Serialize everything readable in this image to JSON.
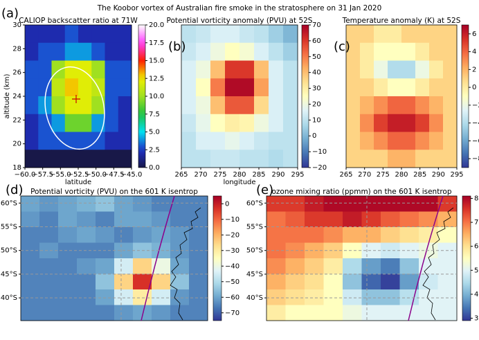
{
  "title": "The Koobor vortex of Australian fire smoke in the stratosphere on 31 Jan 2020",
  "chart_data": [
    {
      "type": "heatmap",
      "panel_label": "(a)",
      "title": "CALIOP backscatter ratio at 71W",
      "xlabel": "latitude",
      "ylabel": "altitude (km)",
      "colormap": "jet",
      "xlim": [
        -60,
        -45
      ],
      "ylim": [
        18,
        30
      ],
      "xticks": [
        {
          "value": -60,
          "label": "−60.0"
        },
        {
          "value": -57.5,
          "label": "−57.5"
        },
        {
          "value": -55,
          "label": "−55.0"
        },
        {
          "value": -52.5,
          "label": "−52.5"
        },
        {
          "value": -50,
          "label": "−50.0"
        },
        {
          "value": -47.5,
          "label": "−47.5"
        },
        {
          "value": -45,
          "label": "−45.0"
        }
      ],
      "yticks": [
        18,
        20,
        22,
        24,
        26,
        28,
        30
      ],
      "clim": [
        0,
        20
      ],
      "cbticks": [
        0.0,
        2.5,
        5.0,
        7.5,
        10.0,
        12.5,
        15.0,
        17.5,
        20.0
      ],
      "cbtick_labels": [
        "0.0",
        "2.5",
        "5.0",
        "7.5",
        "10.0",
        "12.5",
        "15.0",
        "17.5",
        "20.0"
      ],
      "z": [
        [
          2,
          2,
          2,
          3,
          2,
          2,
          2,
          2
        ],
        [
          2,
          3,
          3,
          4,
          4,
          3,
          2,
          2
        ],
        [
          3,
          3,
          10,
          12,
          12,
          10,
          3,
          3
        ],
        [
          3,
          3,
          11,
          13,
          12,
          11,
          3,
          3
        ],
        [
          3,
          4,
          10,
          12,
          12,
          10,
          3,
          2
        ],
        [
          2,
          3,
          4,
          9,
          9,
          4,
          3,
          2
        ],
        [
          2,
          3,
          3,
          3,
          3,
          3,
          2,
          2
        ],
        [
          0,
          0,
          0,
          0,
          0,
          0,
          0,
          0
        ]
      ]
    },
    {
      "type": "heatmap",
      "panel_label": "(b)",
      "title": "Potential vorticity anomaly (PVU) at 52S",
      "xlabel": "longitude",
      "colormap": "RdYlBu_r",
      "xlim": [
        265,
        295
      ],
      "xticks": [
        265,
        270,
        275,
        280,
        285,
        290,
        295
      ],
      "clim": [
        -20,
        70
      ],
      "cbticks": [
        {
          "value": -20,
          "label": "−20"
        },
        {
          "value": -10,
          "label": "−10"
        },
        0,
        10,
        20,
        30,
        40,
        50,
        60,
        70
      ],
      "z": [
        [
          10,
          12,
          15,
          15,
          12,
          10,
          5,
          0
        ],
        [
          12,
          15,
          20,
          25,
          22,
          15,
          10,
          5
        ],
        [
          15,
          20,
          40,
          60,
          60,
          40,
          15,
          10
        ],
        [
          15,
          25,
          50,
          68,
          68,
          45,
          15,
          10
        ],
        [
          15,
          20,
          40,
          55,
          55,
          35,
          15,
          10
        ],
        [
          12,
          18,
          25,
          30,
          28,
          20,
          15,
          10
        ],
        [
          10,
          15,
          15,
          18,
          15,
          12,
          10,
          10
        ],
        [
          10,
          10,
          12,
          12,
          10,
          10,
          8,
          10
        ]
      ]
    },
    {
      "type": "heatmap",
      "panel_label": "(c)",
      "title": "Temperature anomaly (K) at 52S",
      "colormap": "RdYlBu_r",
      "xlim": [
        265,
        295
      ],
      "xticks": [
        265,
        270,
        275,
        280,
        285,
        290,
        295
      ],
      "clim": [
        -9,
        7
      ],
      "cbticks": [
        6,
        4,
        2,
        0,
        {
          "value": -2,
          "label": "−2"
        },
        {
          "value": -4,
          "label": "−4"
        },
        {
          "value": -6,
          "label": "−6"
        },
        {
          "value": -8,
          "label": "−8"
        }
      ],
      "z": [
        [
          1,
          1,
          0,
          0,
          1,
          1,
          1,
          1
        ],
        [
          1,
          0,
          -1,
          -1,
          -1,
          0,
          1,
          1
        ],
        [
          1,
          0,
          -2,
          -4,
          -4,
          -2,
          0,
          1
        ],
        [
          1,
          1,
          0,
          -1,
          -1,
          0,
          1,
          1
        ],
        [
          1,
          2,
          3,
          4,
          4,
          3,
          2,
          1
        ],
        [
          1,
          3,
          5,
          6,
          6,
          5,
          3,
          1
        ],
        [
          1,
          2,
          3,
          4,
          4,
          3,
          2,
          1
        ],
        [
          1,
          1,
          1,
          2,
          2,
          1,
          1,
          1
        ]
      ]
    },
    {
      "type": "heatmap",
      "panel_label": "(d)",
      "title": "Potential vorticity (PVU) on the 601 K isentrop",
      "colormap": "RdYlBu_r",
      "ylim": [
        -35.2,
        -61.5
      ],
      "yticks": [
        {
          "value": -40,
          "label": "40°S"
        },
        {
          "value": -45,
          "label": "45°S"
        },
        {
          "value": -50,
          "label": "50°S"
        },
        {
          "value": -55,
          "label": "55°S"
        },
        {
          "value": -60,
          "label": "60°S"
        }
      ],
      "grid": true,
      "clim": [
        -75,
        5
      ],
      "cbticks": [
        0,
        {
          "value": -10,
          "label": "−10"
        },
        {
          "value": -20,
          "label": "−20"
        },
        {
          "value": -30,
          "label": "−30"
        },
        {
          "value": -40,
          "label": "−40"
        },
        {
          "value": -50,
          "label": "−50"
        },
        {
          "value": -60,
          "label": "−60"
        },
        {
          "value": -70,
          "label": "−70"
        }
      ],
      "z": [
        [
          -60,
          -62,
          -60,
          -58,
          -55,
          -60,
          -62,
          -65,
          -65,
          -65
        ],
        [
          -62,
          -65,
          -60,
          -62,
          -65,
          -60,
          -60,
          -62,
          -65,
          -65
        ],
        [
          -65,
          -65,
          -62,
          -60,
          -62,
          -65,
          -62,
          -60,
          -62,
          -65
        ],
        [
          -65,
          -62,
          -65,
          -65,
          -65,
          -60,
          -55,
          -58,
          -62,
          -65
        ],
        [
          -65,
          -65,
          -65,
          -62,
          -60,
          -45,
          -25,
          -40,
          -60,
          -65
        ],
        [
          -65,
          -65,
          -65,
          -65,
          -55,
          -25,
          -3,
          -25,
          -55,
          -65
        ],
        [
          -65,
          -65,
          -65,
          -65,
          -60,
          -45,
          -30,
          -45,
          -62,
          -65
        ],
        [
          -65,
          -65,
          -65,
          -65,
          -65,
          -62,
          -60,
          -62,
          -65,
          -65
        ]
      ]
    },
    {
      "type": "heatmap",
      "panel_label": "(e)",
      "title": "ozone mixing ratio (ppmm) on the 601 K isentrop",
      "colormap": "RdYlBu_r",
      "ylim": [
        -35.2,
        -61.5
      ],
      "yticks": [
        {
          "value": -40,
          "label": "40°S"
        },
        {
          "value": -45,
          "label": "45°S"
        },
        {
          "value": -50,
          "label": "50°S"
        },
        {
          "value": -55,
          "label": "55°S"
        },
        {
          "value": -60,
          "label": "60°S"
        }
      ],
      "grid": true,
      "clim": [
        2.9,
        8.1
      ],
      "cbticks": [
        8,
        7,
        6,
        5,
        4,
        3
      ],
      "z": [
        [
          7.5,
          7.5,
          7.8,
          8,
          8,
          8,
          8,
          8,
          8,
          7.5
        ],
        [
          7,
          7.2,
          7.5,
          7.5,
          7.8,
          7.5,
          7.2,
          7,
          6.8,
          6.5
        ],
        [
          7,
          7,
          7,
          6.8,
          6.5,
          6.5,
          6.2,
          6,
          5.8,
          5.5
        ],
        [
          7,
          6.8,
          6.5,
          6.2,
          5.5,
          5,
          4.8,
          5,
          5.2,
          5
        ],
        [
          6.8,
          6.5,
          6.2,
          5.8,
          4.5,
          3.8,
          3.5,
          4.2,
          5,
          5
        ],
        [
          6.5,
          6.2,
          6,
          5.5,
          4.2,
          3.3,
          3,
          3.8,
          4.8,
          5
        ],
        [
          6.2,
          6,
          5.8,
          5.5,
          4.8,
          4.2,
          4.2,
          4.6,
          5,
          5
        ],
        [
          5.8,
          5.5,
          5.5,
          5.5,
          5.2,
          5,
          5,
          5,
          5,
          5
        ]
      ]
    }
  ]
}
